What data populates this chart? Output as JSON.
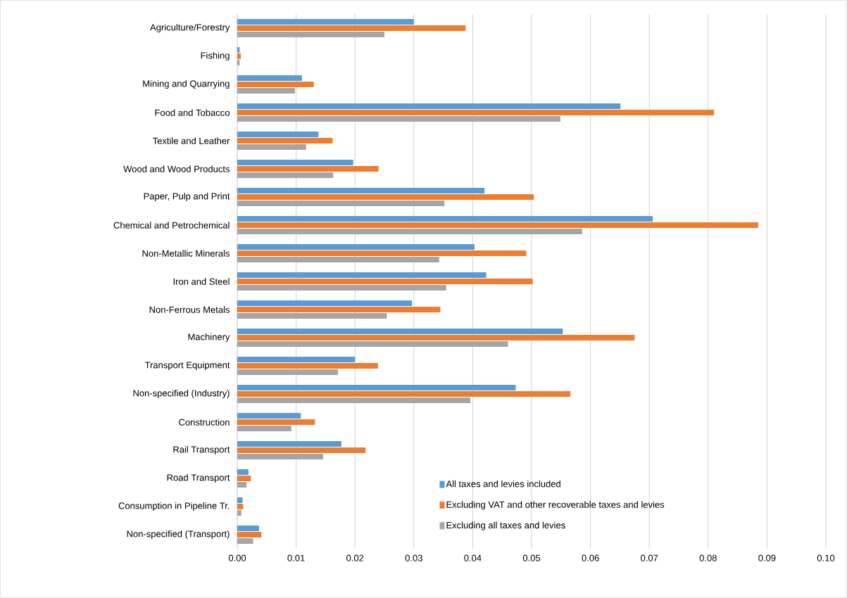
{
  "chart_data": {
    "type": "bar",
    "orientation": "horizontal",
    "categories": [
      "Agriculture/Forestry",
      "Fishing",
      "Mining and Quarrying",
      "Food and Tobacco",
      "Textile and Leather",
      "Wood and Wood Products",
      "Paper, Pulp and Print",
      "Chemical and Petrochemical",
      "Non-Metallic Minerals",
      "Iron and Steel",
      "Non-Ferrous Metals",
      "Machinery",
      "Transport Equipment",
      "Non-specified (Industry)",
      "Construction",
      "Rail Transport",
      "Road Transport",
      "Consumption in Pipeline Tr.",
      "Non-specified (Transport)"
    ],
    "series": [
      {
        "name": "All taxes and levies included",
        "color": "#5b9bd5",
        "values": [
          0.03,
          0.0004,
          0.011,
          0.0651,
          0.0138,
          0.0197,
          0.042,
          0.0706,
          0.0403,
          0.0423,
          0.0297,
          0.0553,
          0.02,
          0.0473,
          0.0108,
          0.0177,
          0.0019,
          0.0009,
          0.0037
        ]
      },
      {
        "name": "Excluding VAT and other recoverable taxes and levies",
        "color": "#ed7d31",
        "values": [
          0.0388,
          0.0006,
          0.013,
          0.081,
          0.0162,
          0.024,
          0.0504,
          0.0885,
          0.0491,
          0.0502,
          0.0345,
          0.0675,
          0.0239,
          0.0566,
          0.0132,
          0.0218,
          0.0023,
          0.001,
          0.0041
        ]
      },
      {
        "name": "Excluding all taxes and levies",
        "color": "#a5a5a5",
        "values": [
          0.025,
          0.0004,
          0.0098,
          0.0549,
          0.0117,
          0.0163,
          0.0352,
          0.0586,
          0.0343,
          0.0355,
          0.0254,
          0.046,
          0.0171,
          0.0396,
          0.0092,
          0.0146,
          0.0016,
          0.0007,
          0.0027
        ]
      }
    ],
    "xlim": [
      0,
      0.1
    ],
    "xticks": [
      {
        "value": 0,
        "label": "0.00"
      },
      {
        "value": 0.01,
        "label": "0.01"
      },
      {
        "value": 0.02,
        "label": "0.02"
      },
      {
        "value": 0.03,
        "label": "0.03"
      },
      {
        "value": 0.04,
        "label": "0.04"
      },
      {
        "value": 0.05,
        "label": "0.05"
      },
      {
        "value": 0.06,
        "label": "0.06"
      },
      {
        "value": 0.07,
        "label": "0.07"
      },
      {
        "value": 0.08,
        "label": "0.08"
      },
      {
        "value": 0.09,
        "label": "0.09"
      },
      {
        "value": 0.1,
        "label": "0.10"
      }
    ],
    "grid": "x",
    "legend": "bottom right"
  }
}
